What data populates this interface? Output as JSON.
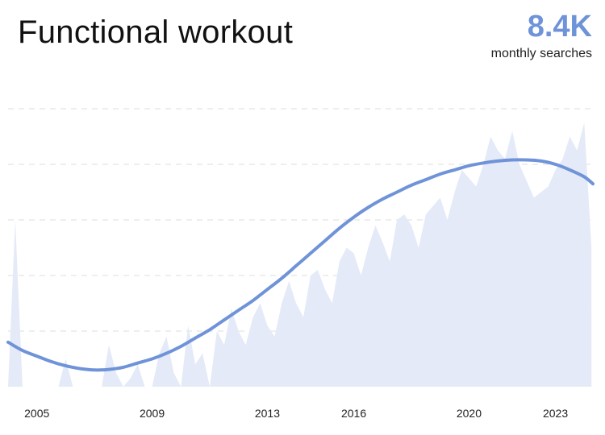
{
  "header": {
    "title": "Functional workout",
    "metric_value": "8.4K",
    "metric_label": "monthly searches"
  },
  "colors": {
    "accent": "#6f93d8",
    "area_fill": "#e4eaf7",
    "grid": "#e3e3e3",
    "text": "#111111"
  },
  "chart_data": {
    "type": "area",
    "title": "Functional workout",
    "xlabel": "",
    "ylabel": "",
    "xlim": [
      2004.0,
      2024.3
    ],
    "ylim": [
      0,
      100
    ],
    "x_ticks": [
      "2005",
      "2009",
      "2013",
      "2016",
      "2020",
      "2023"
    ],
    "x_tick_values": [
      2005,
      2009,
      2013,
      2016,
      2020,
      2023
    ],
    "grid": true,
    "series": [
      {
        "kind": "area",
        "x": [
          2004.0,
          2004.25,
          2004.5,
          2004.75,
          2005.0,
          2005.25,
          2005.5,
          2005.75,
          2006.0,
          2006.25,
          2006.5,
          2006.75,
          2007.0,
          2007.25,
          2007.5,
          2007.75,
          2008.0,
          2008.25,
          2008.5,
          2008.75,
          2009.0,
          2009.25,
          2009.5,
          2009.75,
          2010.0,
          2010.25,
          2010.5,
          2010.75,
          2011.0,
          2011.25,
          2011.5,
          2011.75,
          2012.0,
          2012.25,
          2012.5,
          2012.75,
          2013.0,
          2013.25,
          2013.5,
          2013.75,
          2014.0,
          2014.25,
          2014.5,
          2014.75,
          2015.0,
          2015.25,
          2015.5,
          2015.75,
          2016.0,
          2016.25,
          2016.5,
          2016.75,
          2017.0,
          2017.25,
          2017.5,
          2017.75,
          2018.0,
          2018.25,
          2018.5,
          2018.75,
          2019.0,
          2019.25,
          2019.5,
          2019.75,
          2020.0,
          2020.25,
          2020.5,
          2020.75,
          2021.0,
          2021.25,
          2021.5,
          2021.75,
          2022.0,
          2022.25,
          2022.5,
          2022.75,
          2023.0,
          2023.25,
          2023.5,
          2023.75,
          2024.0,
          2024.25
        ],
        "y": [
          0,
          60,
          0,
          0,
          0,
          0,
          0,
          0,
          10,
          0,
          0,
          0,
          0,
          0,
          15,
          5,
          0,
          3,
          8,
          0,
          0,
          12,
          18,
          5,
          0,
          22,
          8,
          12,
          0,
          20,
          15,
          28,
          20,
          15,
          25,
          30,
          22,
          18,
          30,
          38,
          30,
          25,
          40,
          42,
          35,
          30,
          45,
          50,
          48,
          40,
          50,
          58,
          52,
          45,
          60,
          62,
          58,
          50,
          62,
          65,
          68,
          60,
          70,
          78,
          75,
          72,
          80,
          90,
          85,
          82,
          92,
          80,
          74,
          68,
          70,
          72,
          78,
          82,
          90,
          85,
          95,
          50
        ]
      },
      {
        "kind": "line",
        "x": [
          2004.0,
          2004.5,
          2005.0,
          2005.5,
          2006.0,
          2006.5,
          2007.0,
          2007.5,
          2008.0,
          2008.5,
          2009.0,
          2009.5,
          2010.0,
          2010.5,
          2011.0,
          2011.5,
          2012.0,
          2012.5,
          2013.0,
          2013.5,
          2014.0,
          2014.5,
          2015.0,
          2015.5,
          2016.0,
          2016.5,
          2017.0,
          2017.5,
          2018.0,
          2018.5,
          2019.0,
          2019.5,
          2020.0,
          2020.5,
          2021.0,
          2021.5,
          2022.0,
          2022.5,
          2023.0,
          2023.5,
          2024.0,
          2024.3
        ],
        "y": [
          16,
          13,
          11,
          9,
          7.5,
          6.5,
          6,
          6.2,
          7,
          8.5,
          10,
          12,
          14.5,
          17.5,
          20.5,
          24,
          27.5,
          31,
          35,
          39,
          43.5,
          48,
          52.5,
          57,
          61,
          64.5,
          67.5,
          70,
          72.5,
          74.5,
          76.5,
          78,
          79.5,
          80.5,
          81.2,
          81.6,
          81.6,
          81.2,
          80,
          78,
          75.5,
          73
        ]
      }
    ]
  }
}
